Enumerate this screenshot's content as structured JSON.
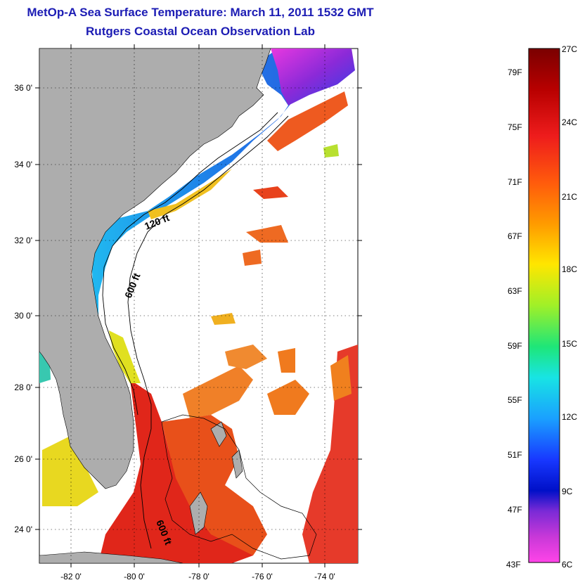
{
  "title": "MetOp-A Sea Surface Temperature:  March 11, 2011 1532 GMT",
  "subtitle": "Rutgers Coastal Ocean Observation Lab",
  "map": {
    "lat_labels": [
      "36 0'",
      "34 0'",
      "32 0'",
      "30 0'",
      "28 0'",
      "26 0'",
      "24 0'"
    ],
    "lon_labels": [
      "-82 0'",
      "-80 0'",
      "-78 0'",
      "-76 0'",
      "-74 0'"
    ],
    "isobath_labels": [
      "120 ft",
      "600 ft",
      "600 ft"
    ],
    "colors": {
      "land": "#adadad",
      "cloud": "#ffffff",
      "warm": "#e0261a",
      "orange": "#f27a1e",
      "cold": "#2f8de8"
    }
  },
  "colorbar": {
    "fahrenheit_labels": [
      "79F",
      "75F",
      "71F",
      "67F",
      "63F",
      "59F",
      "55F",
      "51F",
      "47F",
      "43F"
    ],
    "celsius_labels": [
      "27C",
      "24C",
      "21C",
      "18C",
      "15C",
      "12C",
      "9C",
      "6C"
    ],
    "gradient_stops": [
      "#7a0000",
      "#b80000",
      "#ee1c1c",
      "#ff5a0c",
      "#ff9a00",
      "#ffe600",
      "#a0f028",
      "#1ee678",
      "#18e4e4",
      "#1aa0ff",
      "#1838ff",
      "#0010c8",
      "#7a2ad6",
      "#c838d8",
      "#ff44e8"
    ]
  }
}
